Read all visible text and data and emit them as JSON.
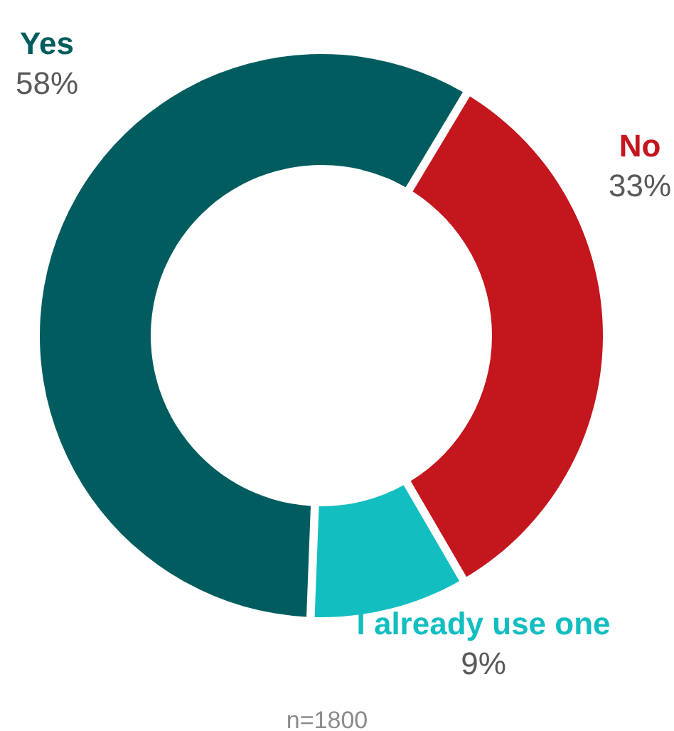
{
  "chart_data": {
    "type": "donut",
    "categories": [
      "Yes",
      "No",
      "I already use one"
    ],
    "values": [
      58,
      33,
      9
    ],
    "colors": [
      "#005c5e",
      "#c4161d",
      "#13bec1"
    ],
    "value_labels": [
      "58%",
      "33%",
      "9%"
    ],
    "annotations": [
      "n=1800"
    ]
  }
}
